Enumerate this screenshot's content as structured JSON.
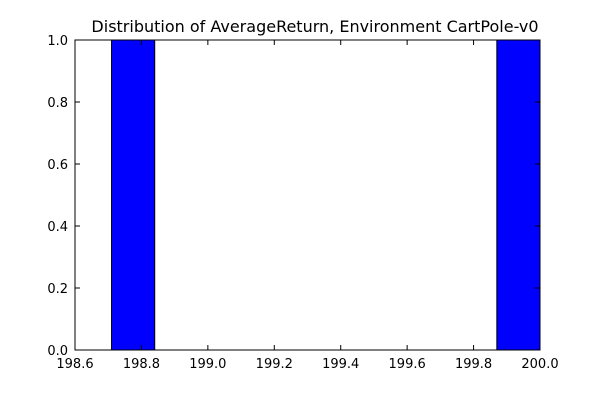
{
  "chart_data": {
    "type": "bar",
    "title": "Distribution of AverageReturn, Environment CartPole-v0",
    "xlabel": "",
    "ylabel": "",
    "xlim": [
      198.6,
      200.0
    ],
    "ylim": [
      0.0,
      1.0
    ],
    "grid": false,
    "bars": [
      {
        "x_start": 198.71,
        "x_end": 198.84,
        "value": 1.0
      },
      {
        "x_start": 199.87,
        "x_end": 200.0,
        "value": 1.0
      }
    ],
    "x_ticks": [
      "198.6",
      "198.8",
      "199.0",
      "199.2",
      "199.4",
      "199.6",
      "199.8",
      "200.0"
    ],
    "y_ticks": [
      "0.0",
      "0.2",
      "0.4",
      "0.6",
      "0.8",
      "1.0"
    ],
    "colors": {
      "bar_fill": "#0000ff",
      "bar_edge": "#000000"
    }
  }
}
